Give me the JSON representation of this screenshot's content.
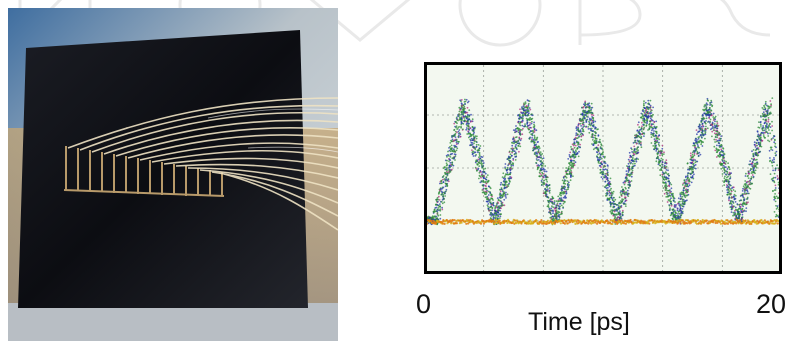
{
  "chart_data": {
    "type": "scatter",
    "description_type": "eye-diagram",
    "xlabel": "Time [ps]",
    "xlim": [
      0,
      20
    ],
    "x_tick_labels": [
      "0",
      "20"
    ],
    "ylabel": "",
    "grid": true,
    "series": [
      {
        "x": [
          0,
          0.45,
          2.1,
          3.9,
          5.6,
          7.3,
          9.1,
          10.8,
          12.5,
          14.2,
          16.0,
          17.7,
          19.4,
          20
        ],
        "y": [
          0.05,
          0.03,
          0.88,
          0.03,
          0.88,
          0.03,
          0.88,
          0.03,
          0.88,
          0.03,
          0.88,
          0.03,
          0.88,
          0.05
        ]
      }
    ],
    "colors": {
      "frame": "#000000",
      "background": "#f3f8f0",
      "grid": "#9aa09a",
      "trace_outer": "#2e8b3a",
      "trace_inner": "#2438a8",
      "trace_peak": "#b03080",
      "baseline": "#e07a10"
    }
  }
}
